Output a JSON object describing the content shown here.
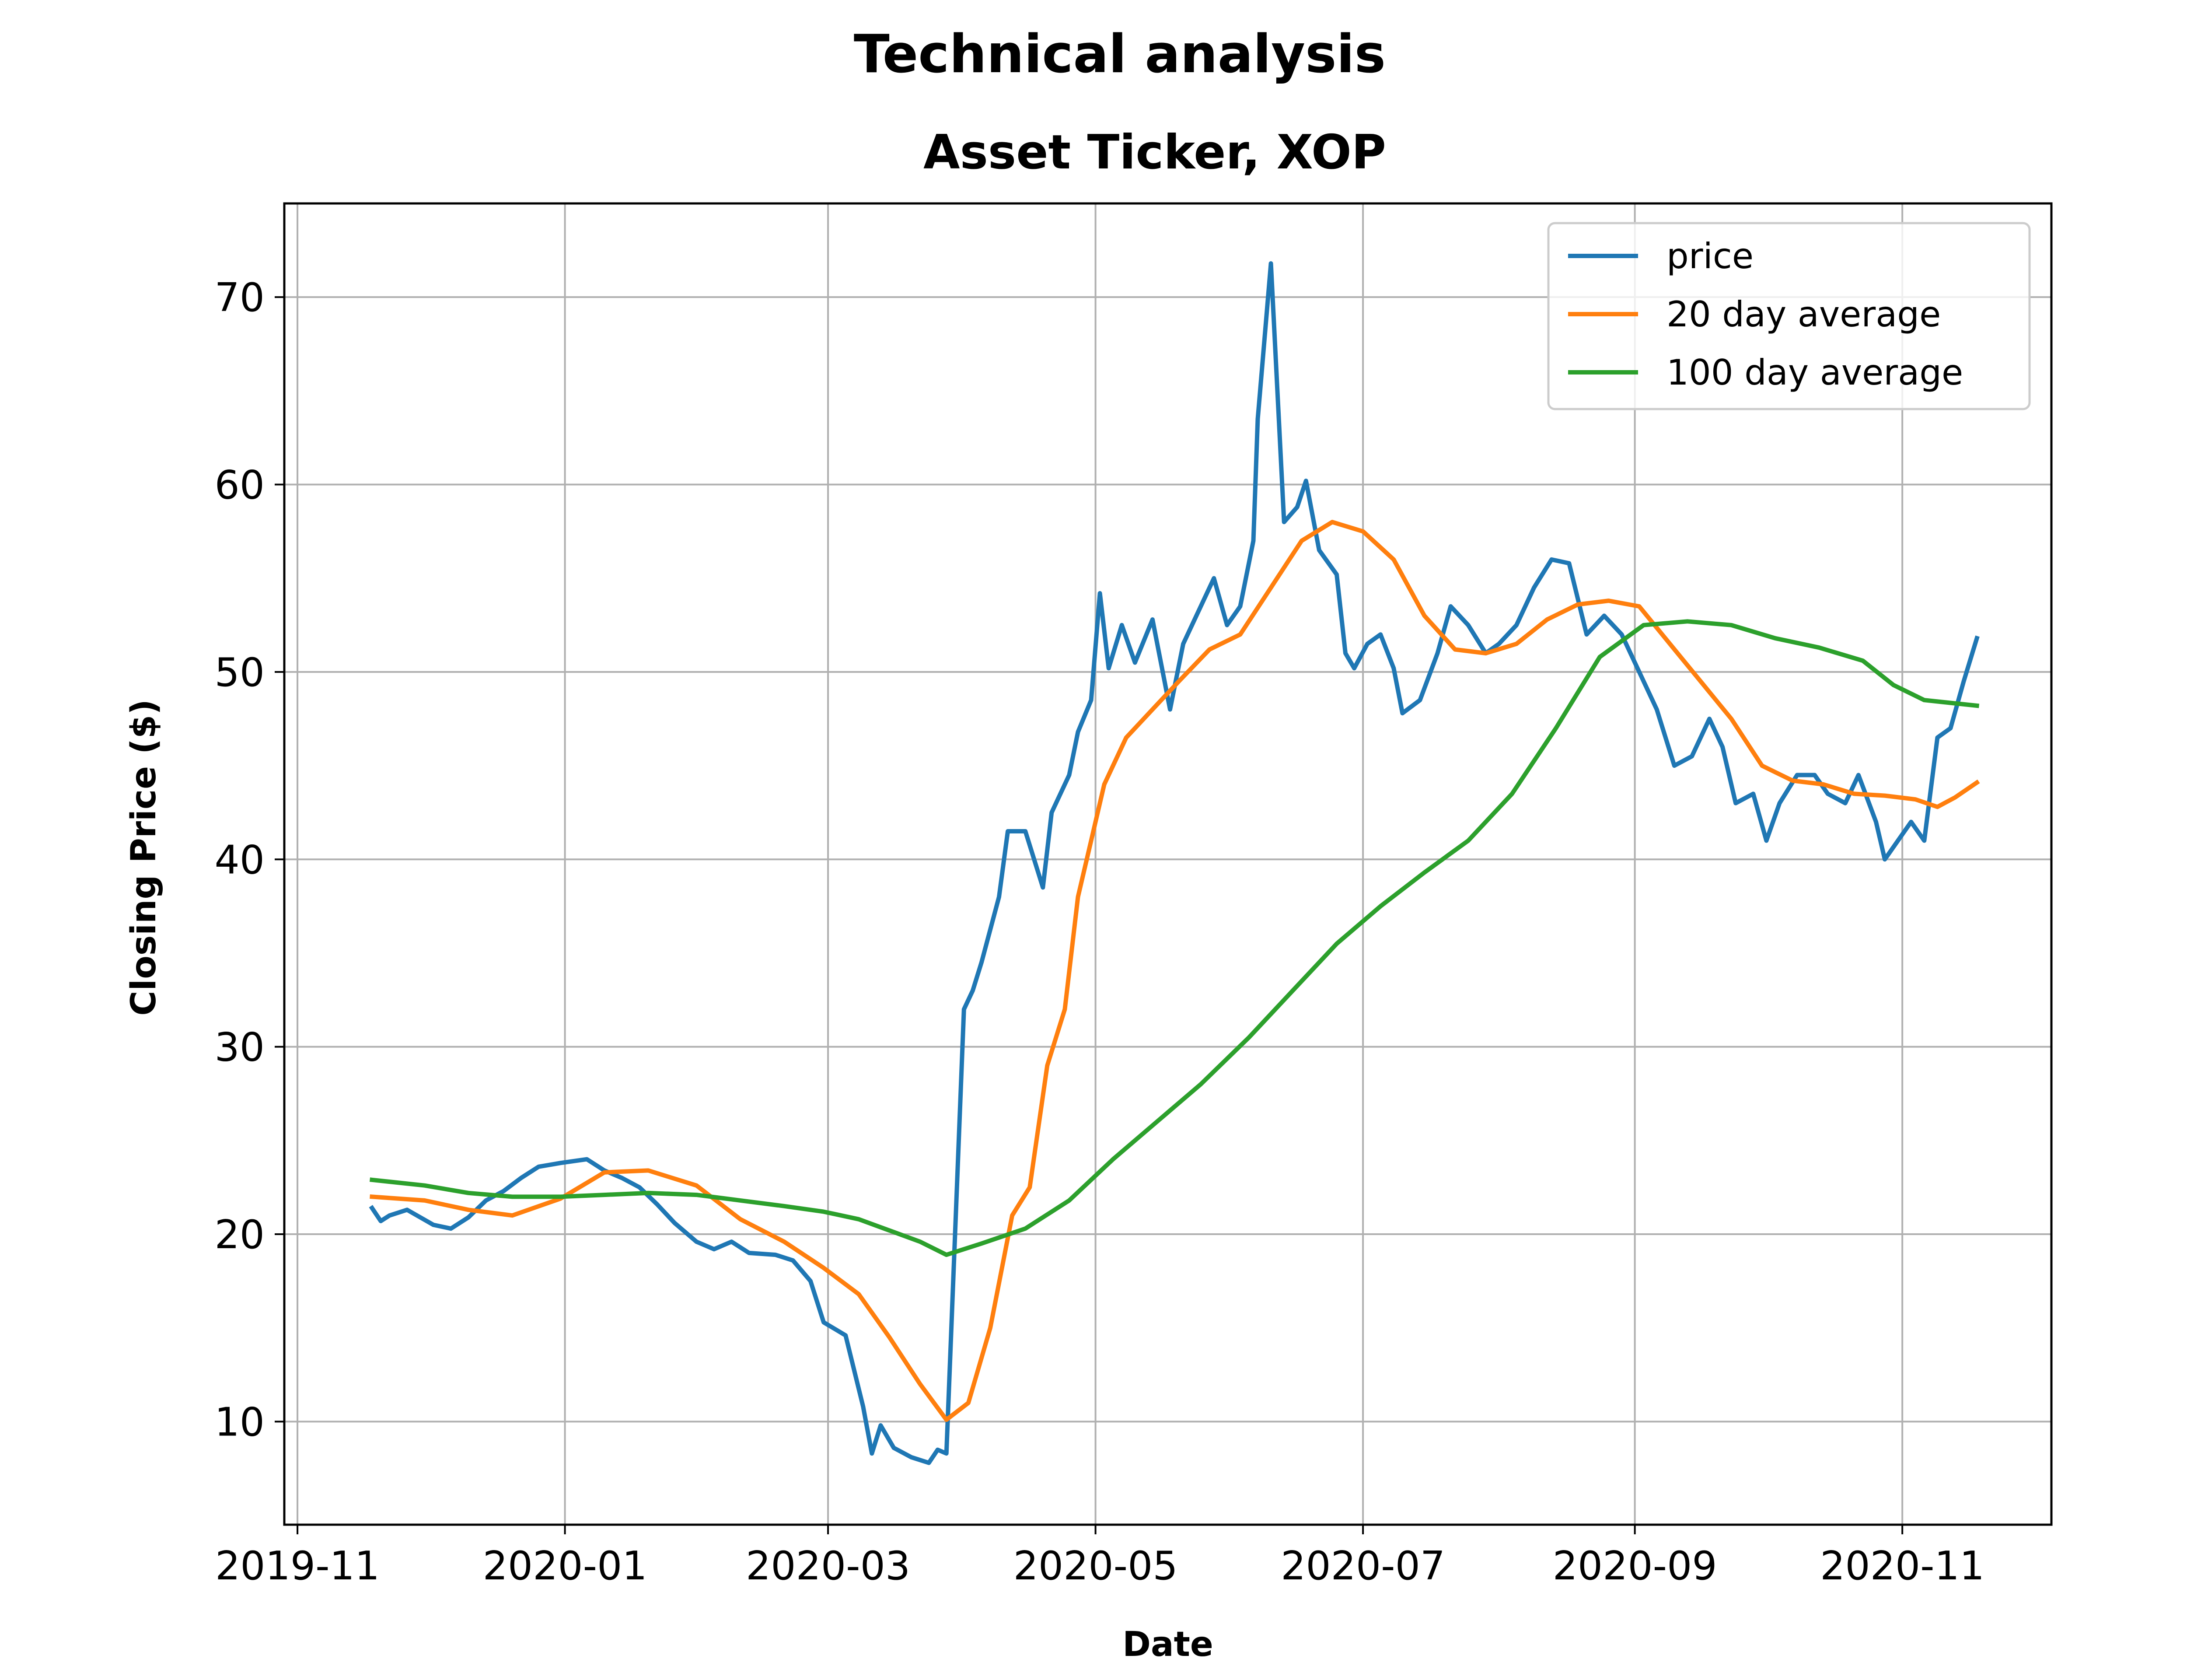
{
  "chart_data": {
    "type": "line",
    "title": "Technical analysis",
    "subtitle": "Asset Ticker, XOP",
    "xlabel": "Date",
    "ylabel": "Closing Price ($)",
    "x_ticks": [
      "2019-11",
      "2020-01",
      "2020-03",
      "2020-05",
      "2020-07",
      "2020-09",
      "2020-11"
    ],
    "y_ticks": [
      10,
      20,
      30,
      40,
      50,
      60,
      70
    ],
    "xlim": [
      "2019-10-29",
      "2020-12-05"
    ],
    "ylim": [
      4.5,
      75
    ],
    "grid": true,
    "legend_position": "top-right",
    "series": [
      {
        "name": "price",
        "color": "#1f77b4",
        "points": [
          [
            "2019-11-18",
            21.4
          ],
          [
            "2019-11-20",
            20.7
          ],
          [
            "2019-11-22",
            21.0
          ],
          [
            "2019-11-26",
            21.3
          ],
          [
            "2019-12-02",
            20.5
          ],
          [
            "2019-12-06",
            20.3
          ],
          [
            "2019-12-10",
            20.9
          ],
          [
            "2019-12-14",
            21.8
          ],
          [
            "2019-12-18",
            22.3
          ],
          [
            "2019-12-22",
            23.0
          ],
          [
            "2019-12-26",
            23.6
          ],
          [
            "2019-12-31",
            23.8
          ],
          [
            "2020-01-06",
            24.0
          ],
          [
            "2020-01-10",
            23.4
          ],
          [
            "2020-01-14",
            23.0
          ],
          [
            "2020-01-18",
            22.5
          ],
          [
            "2020-01-22",
            21.6
          ],
          [
            "2020-01-26",
            20.6
          ],
          [
            "2020-01-31",
            19.6
          ],
          [
            "2020-02-04",
            19.2
          ],
          [
            "2020-02-08",
            19.6
          ],
          [
            "2020-02-12",
            19.0
          ],
          [
            "2020-02-18",
            18.9
          ],
          [
            "2020-02-22",
            18.6
          ],
          [
            "2020-02-26",
            17.5
          ],
          [
            "2020-02-29",
            15.3
          ],
          [
            "2020-03-05",
            14.6
          ],
          [
            "2020-03-09",
            10.8
          ],
          [
            "2020-03-11",
            8.3
          ],
          [
            "2020-03-13",
            9.8
          ],
          [
            "2020-03-16",
            8.6
          ],
          [
            "2020-03-20",
            8.1
          ],
          [
            "2020-03-24",
            7.8
          ],
          [
            "2020-03-26",
            8.5
          ],
          [
            "2020-03-28",
            8.3
          ],
          [
            "2020-04-01",
            32.0
          ],
          [
            "2020-04-03",
            33.0
          ],
          [
            "2020-04-05",
            34.5
          ],
          [
            "2020-04-09",
            38.0
          ],
          [
            "2020-04-11",
            41.5
          ],
          [
            "2020-04-15",
            41.5
          ],
          [
            "2020-04-19",
            38.5
          ],
          [
            "2020-04-21",
            42.5
          ],
          [
            "2020-04-25",
            44.5
          ],
          [
            "2020-04-27",
            46.8
          ],
          [
            "2020-04-30",
            48.5
          ],
          [
            "2020-05-02",
            54.2
          ],
          [
            "2020-05-04",
            50.2
          ],
          [
            "2020-05-07",
            52.5
          ],
          [
            "2020-05-10",
            50.5
          ],
          [
            "2020-05-14",
            52.8
          ],
          [
            "2020-05-18",
            48.0
          ],
          [
            "2020-05-21",
            51.5
          ],
          [
            "2020-05-24",
            53.0
          ],
          [
            "2020-05-28",
            55.0
          ],
          [
            "2020-05-31",
            52.5
          ],
          [
            "2020-06-03",
            53.5
          ],
          [
            "2020-06-06",
            57.0
          ],
          [
            "2020-06-07",
            63.5
          ],
          [
            "2020-06-10",
            71.8
          ],
          [
            "2020-06-13",
            58.0
          ],
          [
            "2020-06-16",
            58.8
          ],
          [
            "2020-06-18",
            60.2
          ],
          [
            "2020-06-21",
            56.5
          ],
          [
            "2020-06-25",
            55.2
          ],
          [
            "2020-06-27",
            51.0
          ],
          [
            "2020-06-29",
            50.2
          ],
          [
            "2020-07-02",
            51.5
          ],
          [
            "2020-07-05",
            52.0
          ],
          [
            "2020-07-08",
            50.2
          ],
          [
            "2020-07-10",
            47.8
          ],
          [
            "2020-07-14",
            48.5
          ],
          [
            "2020-07-18",
            51.0
          ],
          [
            "2020-07-21",
            53.5
          ],
          [
            "2020-07-25",
            52.5
          ],
          [
            "2020-07-29",
            51.0
          ],
          [
            "2020-08-01",
            51.5
          ],
          [
            "2020-08-05",
            52.5
          ],
          [
            "2020-08-09",
            54.5
          ],
          [
            "2020-08-13",
            56.0
          ],
          [
            "2020-08-17",
            55.8
          ],
          [
            "2020-08-21",
            52.0
          ],
          [
            "2020-08-25",
            53.0
          ],
          [
            "2020-08-29",
            52.0
          ],
          [
            "2020-09-02",
            50.0
          ],
          [
            "2020-09-06",
            48.0
          ],
          [
            "2020-09-10",
            45.0
          ],
          [
            "2020-09-14",
            45.5
          ],
          [
            "2020-09-18",
            47.5
          ],
          [
            "2020-09-21",
            46.0
          ],
          [
            "2020-09-24",
            43.0
          ],
          [
            "2020-09-28",
            43.5
          ],
          [
            "2020-10-01",
            41.0
          ],
          [
            "2020-10-04",
            43.0
          ],
          [
            "2020-10-08",
            44.5
          ],
          [
            "2020-10-12",
            44.5
          ],
          [
            "2020-10-15",
            43.5
          ],
          [
            "2020-10-19",
            43.0
          ],
          [
            "2020-10-22",
            44.5
          ],
          [
            "2020-10-26",
            42.0
          ],
          [
            "2020-10-28",
            40.0
          ],
          [
            "2020-10-31",
            41.0
          ],
          [
            "2020-11-03",
            42.0
          ],
          [
            "2020-11-06",
            41.0
          ],
          [
            "2020-11-09",
            46.5
          ],
          [
            "2020-11-12",
            47.0
          ],
          [
            "2020-11-15",
            49.5
          ],
          [
            "2020-11-18",
            51.8
          ]
        ]
      },
      {
        "name": "20 day average",
        "color": "#ff7f0e",
        "points": [
          [
            "2019-11-18",
            22.0
          ],
          [
            "2019-11-30",
            21.8
          ],
          [
            "2019-12-10",
            21.3
          ],
          [
            "2019-12-20",
            21.0
          ],
          [
            "2019-12-31",
            21.9
          ],
          [
            "2020-01-10",
            23.3
          ],
          [
            "2020-01-20",
            23.4
          ],
          [
            "2020-01-31",
            22.6
          ],
          [
            "2020-02-10",
            20.8
          ],
          [
            "2020-02-20",
            19.6
          ],
          [
            "2020-02-29",
            18.2
          ],
          [
            "2020-03-08",
            16.8
          ],
          [
            "2020-03-15",
            14.5
          ],
          [
            "2020-03-22",
            12.0
          ],
          [
            "2020-03-28",
            10.1
          ],
          [
            "2020-04-02",
            11.0
          ],
          [
            "2020-04-07",
            15.0
          ],
          [
            "2020-04-12",
            21.0
          ],
          [
            "2020-04-16",
            22.5
          ],
          [
            "2020-04-20",
            29.0
          ],
          [
            "2020-04-24",
            32.0
          ],
          [
            "2020-04-27",
            38.0
          ],
          [
            "2020-04-30",
            41.0
          ],
          [
            "2020-05-03",
            44.0
          ],
          [
            "2020-05-08",
            46.5
          ],
          [
            "2020-05-14",
            48.0
          ],
          [
            "2020-05-20",
            49.5
          ],
          [
            "2020-05-27",
            51.2
          ],
          [
            "2020-06-03",
            52.0
          ],
          [
            "2020-06-10",
            54.5
          ],
          [
            "2020-06-17",
            57.0
          ],
          [
            "2020-06-24",
            58.0
          ],
          [
            "2020-07-01",
            57.5
          ],
          [
            "2020-07-08",
            56.0
          ],
          [
            "2020-07-15",
            53.0
          ],
          [
            "2020-07-22",
            51.2
          ],
          [
            "2020-07-29",
            51.0
          ],
          [
            "2020-08-05",
            51.5
          ],
          [
            "2020-08-12",
            52.8
          ],
          [
            "2020-08-19",
            53.6
          ],
          [
            "2020-08-26",
            53.8
          ],
          [
            "2020-09-02",
            53.5
          ],
          [
            "2020-09-09",
            51.5
          ],
          [
            "2020-09-16",
            49.5
          ],
          [
            "2020-09-23",
            47.5
          ],
          [
            "2020-09-30",
            45.0
          ],
          [
            "2020-10-07",
            44.2
          ],
          [
            "2020-10-14",
            44.0
          ],
          [
            "2020-10-21",
            43.5
          ],
          [
            "2020-10-28",
            43.4
          ],
          [
            "2020-11-04",
            43.2
          ],
          [
            "2020-11-09",
            42.8
          ],
          [
            "2020-11-13",
            43.3
          ],
          [
            "2020-11-18",
            44.1
          ]
        ]
      },
      {
        "name": "100 day average",
        "color": "#2ca02c",
        "points": [
          [
            "2019-11-18",
            22.9
          ],
          [
            "2019-11-30",
            22.6
          ],
          [
            "2019-12-10",
            22.2
          ],
          [
            "2019-12-20",
            22.0
          ],
          [
            "2019-12-31",
            22.0
          ],
          [
            "2020-01-10",
            22.1
          ],
          [
            "2020-01-20",
            22.2
          ],
          [
            "2020-01-31",
            22.1
          ],
          [
            "2020-02-10",
            21.8
          ],
          [
            "2020-02-20",
            21.5
          ],
          [
            "2020-02-29",
            21.2
          ],
          [
            "2020-03-08",
            20.8
          ],
          [
            "2020-03-15",
            20.2
          ],
          [
            "2020-03-22",
            19.6
          ],
          [
            "2020-03-28",
            18.9
          ],
          [
            "2020-04-05",
            19.5
          ],
          [
            "2020-04-15",
            20.3
          ],
          [
            "2020-04-25",
            21.8
          ],
          [
            "2020-05-05",
            24.0
          ],
          [
            "2020-05-15",
            26.0
          ],
          [
            "2020-05-25",
            28.0
          ],
          [
            "2020-06-05",
            30.5
          ],
          [
            "2020-06-15",
            33.0
          ],
          [
            "2020-06-25",
            35.5
          ],
          [
            "2020-07-05",
            37.5
          ],
          [
            "2020-07-15",
            39.3
          ],
          [
            "2020-07-25",
            41.0
          ],
          [
            "2020-08-04",
            43.5
          ],
          [
            "2020-08-14",
            47.0
          ],
          [
            "2020-08-24",
            50.8
          ],
          [
            "2020-09-03",
            52.5
          ],
          [
            "2020-09-13",
            52.7
          ],
          [
            "2020-09-23",
            52.5
          ],
          [
            "2020-10-03",
            51.8
          ],
          [
            "2020-10-13",
            51.3
          ],
          [
            "2020-10-23",
            50.6
          ],
          [
            "2020-10-30",
            49.3
          ],
          [
            "2020-11-06",
            48.5
          ],
          [
            "2020-11-18",
            48.2
          ]
        ]
      }
    ]
  }
}
